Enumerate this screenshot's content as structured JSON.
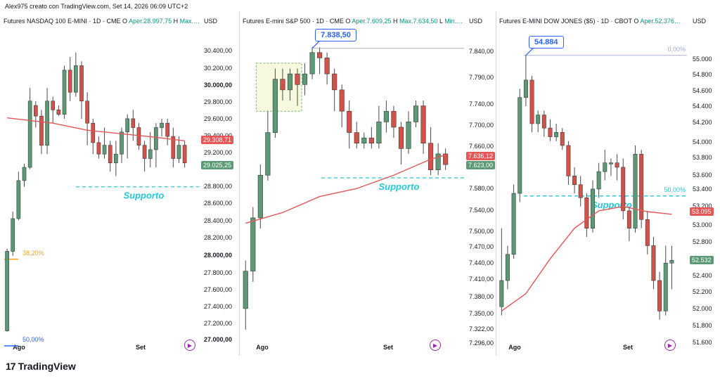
{
  "header": "Alex975 creato con TradingView.com, Set 14, 2026 06:09 UTC+2",
  "footer": {
    "logo": "17",
    "brand": "TradingView"
  },
  "currency": "USD",
  "xaxis": [
    "Ago",
    "Set"
  ],
  "colors": {
    "up": "#5b9a74",
    "down": "#d2524a",
    "ma": "#e55656",
    "support": "#26c6da",
    "callout": "#2962ff"
  },
  "chart_data": [
    {
      "type": "candlestick",
      "title": "Futures NASDAQ 100 E-MINI · 1D · CME",
      "open_label": "O",
      "open": "Aper.28.997,75",
      "high": "H",
      "high_value": "Max.…",
      "yticks": [
        "30.400,00",
        "30.200,00",
        "30.000,00",
        "29.800,00",
        "29.600,00",
        "29.400,00",
        "29.200,00",
        "28.800,00",
        "28.600,00",
        "28.400,00",
        "28.200,00",
        "28.000,00",
        "27.800,00",
        "27.600,00",
        "27.400,00",
        "27.200,00",
        "27.000,00"
      ],
      "ylim": [
        26980,
        30480
      ],
      "support": {
        "label": "Supporto",
        "value": 28780
      },
      "fib": [
        {
          "label": "38,20%",
          "value": 27960,
          "color": "#f5a623"
        },
        {
          "label": "50,00%",
          "value": 26980,
          "color": "#2962ff"
        }
      ],
      "price_tags": [
        {
          "text": "29.308,71",
          "value": 29308,
          "color": "#e55656"
        },
        {
          "text": "29.025,25",
          "value": 29025,
          "color": "#5b9a74"
        }
      ],
      "candles": [
        [
          27150,
          28050,
          27140,
          28080
        ],
        [
          28050,
          28420,
          28000,
          28500
        ],
        [
          28420,
          28850,
          28400,
          28950
        ],
        [
          28850,
          29000,
          28780,
          29040
        ],
        [
          29000,
          29750,
          28980,
          29900
        ],
        [
          29700,
          29580,
          29450,
          29750
        ],
        [
          29580,
          29250,
          29150,
          29650
        ],
        [
          29250,
          29750,
          29150,
          29900
        ],
        [
          29750,
          29650,
          29500,
          29800
        ],
        [
          29650,
          29600,
          29580,
          29700
        ],
        [
          29600,
          30100,
          29550,
          30150
        ],
        [
          30100,
          29850,
          29750,
          30250
        ],
        [
          29850,
          30150,
          29800,
          30300
        ],
        [
          30150,
          29750,
          29550,
          30200
        ],
        [
          29750,
          29500,
          29250,
          29850
        ],
        [
          29500,
          29280,
          29150,
          29550
        ],
        [
          29280,
          29150,
          29100,
          29350
        ],
        [
          29150,
          29250,
          29100,
          29450
        ],
        [
          29250,
          29050,
          28950,
          29300
        ],
        [
          29050,
          29150,
          28900,
          29300
        ],
        [
          29150,
          29400,
          29050,
          29450
        ],
        [
          29400,
          29550,
          29100,
          29600
        ],
        [
          29550,
          29450,
          29300,
          29650
        ],
        [
          29450,
          29250,
          29200,
          29500
        ],
        [
          29250,
          29100,
          28950,
          29300
        ],
        [
          29100,
          29200,
          29000,
          29400
        ],
        [
          29200,
          29450,
          29000,
          29500
        ],
        [
          29450,
          29500,
          29350,
          29550
        ],
        [
          29500,
          29350,
          29250,
          29550
        ],
        [
          29350,
          29100,
          29000,
          29450
        ],
        [
          29100,
          29250,
          29050,
          29350
        ],
        [
          29250,
          29050,
          29000,
          29300
        ]
      ],
      "ma": [
        [
          0,
          29560
        ],
        [
          8,
          29500
        ],
        [
          14,
          29420
        ],
        [
          20,
          29380
        ],
        [
          26,
          29340
        ],
        [
          31,
          29300
        ]
      ]
    },
    {
      "type": "candlestick",
      "title": "Futures E-mini S&P 500 · 1D · CME",
      "open_label": "O",
      "open": "Aper.7.609,25",
      "high": "H",
      "high_value": "Max.7.634,50",
      "low": "L",
      "low_value": "Min.…",
      "yticks": [
        "7.840,00",
        "7.790,00",
        "7.740,00",
        "7.700,00",
        "7.660,00",
        "7.580,00",
        "7.540,00",
        "7.500,00",
        "7.470,00",
        "7.440,00",
        "7.410,00",
        "7.380,00",
        "7.350,00",
        "7.322,00",
        "7.296,00"
      ],
      "ylim": [
        7280,
        7860
      ],
      "callout": "7.838,50",
      "support": {
        "label": "Supporto",
        "value": 7595
      },
      "price_tags": [
        {
          "text": "7.636,12",
          "value": 7636,
          "color": "#e55656"
        },
        {
          "text": "7.623,00",
          "value": 7623,
          "color": "#5b9a74"
        }
      ],
      "candles": [
        [
          7350,
          7420,
          7310,
          7440
        ],
        [
          7420,
          7520,
          7400,
          7540
        ],
        [
          7520,
          7600,
          7500,
          7620
        ],
        [
          7600,
          7680,
          7590,
          7720
        ],
        [
          7680,
          7780,
          7670,
          7800
        ],
        [
          7780,
          7760,
          7740,
          7800
        ],
        [
          7760,
          7790,
          7740,
          7800
        ],
        [
          7790,
          7770,
          7730,
          7800
        ],
        [
          7770,
          7790,
          7750,
          7810
        ],
        [
          7790,
          7830,
          7780,
          7840
        ],
        [
          7830,
          7820,
          7790,
          7840
        ],
        [
          7820,
          7790,
          7770,
          7830
        ],
        [
          7790,
          7760,
          7720,
          7800
        ],
        [
          7760,
          7720,
          7690,
          7770
        ],
        [
          7720,
          7680,
          7650,
          7740
        ],
        [
          7680,
          7660,
          7650,
          7700
        ],
        [
          7660,
          7670,
          7650,
          7680
        ],
        [
          7670,
          7660,
          7650,
          7690
        ],
        [
          7660,
          7700,
          7650,
          7730
        ],
        [
          7700,
          7720,
          7680,
          7740
        ],
        [
          7720,
          7690,
          7670,
          7730
        ],
        [
          7690,
          7650,
          7620,
          7700
        ],
        [
          7650,
          7700,
          7640,
          7720
        ],
        [
          7700,
          7730,
          7690,
          7740
        ],
        [
          7730,
          7660,
          7640,
          7740
        ],
        [
          7660,
          7610,
          7600,
          7690
        ],
        [
          7610,
          7640,
          7600,
          7660
        ],
        [
          7640,
          7620,
          7610,
          7650
        ]
      ],
      "ma": [
        [
          0,
          7510
        ],
        [
          5,
          7530
        ],
        [
          10,
          7560
        ],
        [
          15,
          7575
        ],
        [
          20,
          7600
        ],
        [
          25,
          7630
        ],
        [
          27,
          7638
        ]
      ]
    },
    {
      "type": "candlestick",
      "title": "Futures E-MINI DOW JONES ($5) · 1D · CBOT",
      "open_label": "O",
      "open": "Aper.52.376…",
      "yticks": [
        "55.000",
        "54.800",
        "54.600",
        "54.400",
        "54.200",
        "54.000",
        "53.800",
        "53.600",
        "53.400",
        "53.200",
        "53.000",
        "52.800",
        "52.600",
        "52.400",
        "52.200",
        "52.000",
        "51.800",
        "51.600"
      ],
      "ylim": [
        51550,
        55100
      ],
      "callout": "54.884",
      "support": {
        "label": "Supporto",
        "value": 53270
      },
      "fib": [
        {
          "label": "0,00%",
          "value": 54884,
          "color": "#9fa8da"
        },
        {
          "label": "50,00%",
          "value": 53270,
          "color": "#26c6da"
        }
      ],
      "price_tags": [
        {
          "text": "53.095",
          "value": 53095,
          "color": "#e55656"
        },
        {
          "text": "52.532",
          "value": 52532,
          "color": "#5b9a74"
        }
      ],
      "candles": [
        [
          52000,
          52300,
          51900,
          52900
        ],
        [
          52300,
          52600,
          52200,
          52700
        ],
        [
          52600,
          53300,
          52550,
          53400
        ],
        [
          53300,
          54400,
          53200,
          54500
        ],
        [
          54400,
          54600,
          54300,
          54884
        ],
        [
          54600,
          54100,
          54000,
          54650
        ],
        [
          54100,
          54200,
          54000,
          54250
        ],
        [
          54200,
          54050,
          53950,
          54250
        ],
        [
          54050,
          53950,
          53900,
          54150
        ],
        [
          53950,
          54000,
          53900,
          54100
        ],
        [
          54000,
          53850,
          53800,
          54050
        ],
        [
          53850,
          53500,
          53400,
          53900
        ],
        [
          53500,
          53400,
          53300,
          53600
        ],
        [
          53400,
          53250,
          53150,
          53500
        ],
        [
          53250,
          52900,
          52800,
          53300
        ],
        [
          52900,
          53350,
          52850,
          53450
        ],
        [
          53350,
          53550,
          53250,
          53650
        ],
        [
          53550,
          53650,
          53450,
          53800
        ],
        [
          53650,
          53650,
          53500,
          53700
        ],
        [
          53650,
          53600,
          53450,
          53750
        ],
        [
          53600,
          53100,
          53000,
          53700
        ],
        [
          53100,
          52900,
          52750,
          53150
        ],
        [
          52900,
          53750,
          52850,
          53850
        ],
        [
          53750,
          53000,
          52900,
          53800
        ],
        [
          53000,
          52700,
          52600,
          53100
        ],
        [
          52700,
          52300,
          52200,
          52800
        ],
        [
          52300,
          51950,
          51850,
          52400
        ],
        [
          51950,
          52500,
          51900,
          52700
        ],
        [
          52500,
          52532,
          52200,
          52700
        ]
      ],
      "ma": [
        [
          0,
          51950
        ],
        [
          4,
          52150
        ],
        [
          8,
          52550
        ],
        [
          12,
          52900
        ],
        [
          16,
          53100
        ],
        [
          20,
          53150
        ],
        [
          24,
          53090
        ],
        [
          28,
          53060
        ]
      ]
    }
  ]
}
